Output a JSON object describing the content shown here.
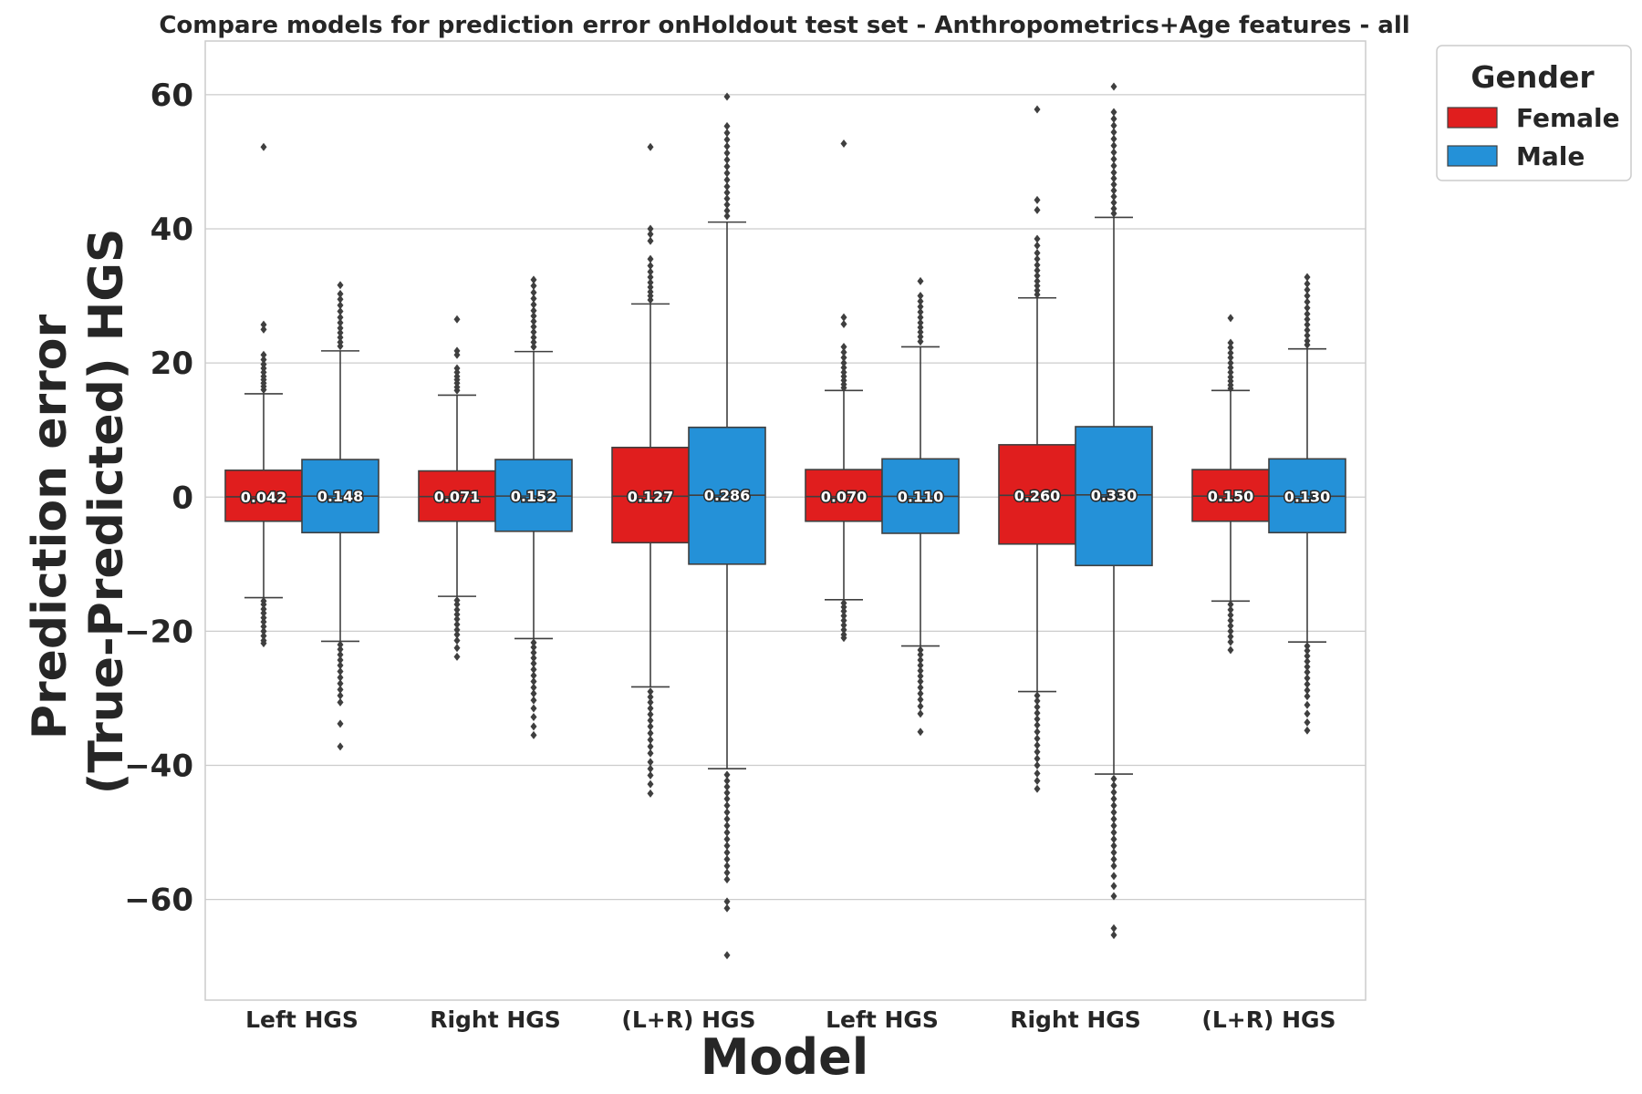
{
  "chart_data": {
    "type": "box",
    "title": "Compare models for prediction error onHoldout test set - Anthropometrics+Age features - all",
    "xlabel": "Model",
    "ylabel_lines": [
      "Prediction error",
      "(True-Predicted) HGS"
    ],
    "ylim": [
      -75,
      68
    ],
    "yticks": [
      60,
      40,
      20,
      0,
      -20,
      -40,
      -60
    ],
    "ytick_labels": [
      "60",
      "40",
      "20",
      "0",
      "−20",
      "−40",
      "−60"
    ],
    "grid": true,
    "categories": [
      "Left HGS",
      "Right HGS",
      "(L+R) HGS",
      "Left HGS",
      "Right HGS",
      "(L+R) HGS"
    ],
    "legend": {
      "title": "Gender",
      "placement": "outside-top-right",
      "entries": [
        {
          "label": "Female",
          "color": "#e01e1e"
        },
        {
          "label": "Male",
          "color": "#2491d8"
        }
      ]
    },
    "series": [
      {
        "name": "Female",
        "color": "#e01e1e",
        "boxes": [
          {
            "median": 0.042,
            "label": "0.042",
            "q1": -3.6,
            "q3": 4.0,
            "whisker_low": -15.0,
            "whisker_high": 15.4,
            "outliers": [
              52.2,
              25.7,
              25.0,
              21.2,
              20.5,
              19.8,
              19.2,
              18.6,
              18.0,
              17.5,
              17.0,
              16.5,
              16.0,
              -15.5,
              -16.0,
              -16.7,
              -17.3,
              -18.0,
              -18.6,
              -19.3,
              -20.0,
              -20.7,
              -21.4,
              -21.8
            ]
          },
          {
            "median": 0.071,
            "label": "0.071",
            "q1": -3.6,
            "q3": 3.9,
            "whisker_low": -14.8,
            "whisker_high": 15.2,
            "outliers": [
              26.5,
              21.8,
              21.2,
              19.2,
              18.6,
              18.0,
              17.5,
              17.0,
              16.4,
              15.9,
              -15.4,
              -16.0,
              -16.8,
              -17.5,
              -18.2,
              -19.0,
              -19.8,
              -20.5,
              -21.4,
              -22.5,
              -23.8
            ]
          },
          {
            "median": 0.127,
            "label": "0.127",
            "q1": -6.8,
            "q3": 7.4,
            "whisker_low": -28.3,
            "whisker_high": 28.8,
            "outliers": [
              52.2,
              40.0,
              39.2,
              38.2,
              35.5,
              34.5,
              33.6,
              32.8,
              32.0,
              31.3,
              30.6,
              30.0,
              29.4,
              -29.0,
              -29.8,
              -30.6,
              -31.5,
              -32.4,
              -33.3,
              -34.2,
              -35.2,
              -36.2,
              -37.2,
              -38.2,
              -39.5,
              -40.5,
              -41.5,
              -42.8,
              -44.2
            ]
          },
          {
            "median": 0.07,
            "label": "0.070",
            "q1": -3.6,
            "q3": 4.1,
            "whisker_low": -15.3,
            "whisker_high": 15.9,
            "outliers": [
              52.7,
              26.8,
              25.8,
              22.4,
              21.6,
              20.8,
              20.0,
              19.3,
              18.6,
              18.0,
              17.4,
              16.8,
              16.3,
              -15.8,
              -16.4,
              -17.0,
              -17.7,
              -18.4,
              -19.1,
              -19.8,
              -20.5,
              -21.0
            ]
          },
          {
            "median": 0.26,
            "label": "0.260",
            "q1": -7.0,
            "q3": 7.8,
            "whisker_low": -29.0,
            "whisker_high": 29.7,
            "outliers": [
              57.8,
              44.3,
              42.8,
              38.5,
              37.5,
              36.4,
              35.5,
              34.6,
              33.8,
              33.0,
              32.2,
              31.5,
              30.8,
              30.2,
              -29.6,
              -30.4,
              -31.3,
              -32.2,
              -33.1,
              -34.0,
              -35.0,
              -36.0,
              -37.0,
              -38.0,
              -39.0,
              -40.0,
              -41.2,
              -42.3,
              -43.5
            ]
          },
          {
            "median": 0.15,
            "label": "0.150",
            "q1": -3.6,
            "q3": 4.1,
            "whisker_low": -15.5,
            "whisker_high": 15.9,
            "outliers": [
              26.7,
              23.0,
              22.3,
              21.5,
              20.8,
              20.0,
              19.3,
              18.6,
              17.9,
              17.3,
              16.7,
              16.2,
              -16.0,
              -16.8,
              -17.6,
              -18.4,
              -19.2,
              -20.0,
              -20.8,
              -21.6,
              -22.8
            ]
          }
        ]
      },
      {
        "name": "Male",
        "color": "#2491d8",
        "boxes": [
          {
            "median": 0.148,
            "label": "0.148",
            "q1": -5.3,
            "q3": 5.6,
            "whisker_low": -21.5,
            "whisker_high": 21.8,
            "outliers": [
              31.6,
              30.3,
              29.5,
              28.6,
              27.7,
              26.8,
              26.0,
              25.2,
              24.5,
              23.8,
              23.1,
              22.5,
              -22.0,
              -22.7,
              -23.5,
              -24.3,
              -25.1,
              -26.0,
              -26.9,
              -27.8,
              -28.7,
              -29.6,
              -30.6,
              -33.8,
              -37.2
            ]
          },
          {
            "median": 0.152,
            "label": "0.152",
            "q1": -5.1,
            "q3": 5.6,
            "whisker_low": -21.1,
            "whisker_high": 21.7,
            "outliers": [
              32.4,
              31.5,
              30.5,
              29.6,
              28.7,
              27.8,
              27.0,
              26.2,
              25.4,
              24.6,
              23.8,
              23.1,
              22.4,
              -21.7,
              -22.4,
              -23.2,
              -24.0,
              -24.8,
              -25.7,
              -26.6,
              -27.5,
              -28.4,
              -29.3,
              -30.3,
              -31.5,
              -32.8,
              -34.2,
              -35.5
            ]
          },
          {
            "median": 0.286,
            "label": "0.286",
            "q1": -10.0,
            "q3": 10.4,
            "whisker_low": -40.5,
            "whisker_high": 41.0,
            "outliers": [
              59.7,
              55.3,
              54.3,
              53.3,
              52.3,
              51.3,
              50.3,
              49.3,
              48.3,
              47.3,
              46.3,
              45.4,
              44.5,
              43.6,
              42.7,
              41.9,
              -41.4,
              -42.3,
              -43.2,
              -44.1,
              -45.0,
              -46.0,
              -47.0,
              -48.0,
              -49.0,
              -50.0,
              -51.0,
              -52.0,
              -53.0,
              -54.0,
              -55.0,
              -56.0,
              -57.0,
              -60.3,
              -61.3,
              -68.3
            ]
          },
          {
            "median": 0.11,
            "label": "0.110",
            "q1": -5.4,
            "q3": 5.7,
            "whisker_low": -22.2,
            "whisker_high": 22.4,
            "outliers": [
              32.2,
              30.0,
              29.2,
              28.4,
              27.6,
              26.8,
              26.0,
              25.3,
              24.6,
              23.9,
              23.2,
              -22.8,
              -23.5,
              -24.3,
              -25.1,
              -25.9,
              -26.7,
              -27.5,
              -28.4,
              -29.3,
              -30.2,
              -31.2,
              -32.3,
              -35.0
            ]
          },
          {
            "median": 0.33,
            "label": "0.330",
            "q1": -10.2,
            "q3": 10.5,
            "whisker_low": -41.3,
            "whisker_high": 41.7,
            "outliers": [
              61.2,
              57.4,
              56.4,
              55.4,
              54.4,
              53.4,
              52.4,
              51.4,
              50.4,
              49.4,
              48.4,
              47.5,
              46.6,
              45.7,
              44.8,
              43.9,
              43.0,
              42.3,
              -42.0,
              -43.0,
              -44.0,
              -45.0,
              -46.0,
              -47.0,
              -48.0,
              -49.0,
              -50.0,
              -51.0,
              -52.0,
              -53.0,
              -54.0,
              -55.0,
              -56.5,
              -58.0,
              -59.5,
              -64.3,
              -65.3
            ]
          },
          {
            "median": 0.13,
            "label": "0.130",
            "q1": -5.3,
            "q3": 5.7,
            "whisker_low": -21.6,
            "whisker_high": 22.1,
            "outliers": [
              32.8,
              31.8,
              30.9,
              30.0,
              29.1,
              28.2,
              27.3,
              26.5,
              25.7,
              24.9,
              24.1,
              23.3,
              22.7,
              -22.2,
              -22.9,
              -23.7,
              -24.5,
              -25.3,
              -26.1,
              -27.0,
              -27.9,
              -28.8,
              -29.7,
              -31.0,
              -32.3,
              -33.6,
              -34.8
            ]
          }
        ]
      }
    ]
  }
}
